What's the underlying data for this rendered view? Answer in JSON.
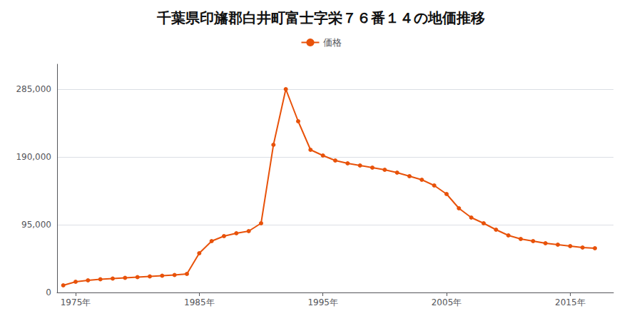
{
  "chart_data": {
    "type": "line",
    "title": "千葉県印旛郡白井町富士字栄７６番１４の地価推移",
    "x": [
      1974,
      1975,
      1976,
      1977,
      1978,
      1979,
      1980,
      1981,
      1982,
      1983,
      1984,
      1985,
      1986,
      1987,
      1988,
      1989,
      1990,
      1991,
      1992,
      1993,
      1994,
      1995,
      1996,
      1997,
      1998,
      1999,
      2000,
      2001,
      2002,
      2003,
      2004,
      2005,
      2006,
      2007,
      2008,
      2009,
      2010,
      2011,
      2012,
      2013,
      2014,
      2015,
      2016,
      2017
    ],
    "series": [
      {
        "name": "価格",
        "color": "#e8520a",
        "marker": "circle",
        "values": [
          10000,
          15000,
          17000,
          18500,
          19500,
          20500,
          21500,
          22500,
          23500,
          24500,
          26000,
          55000,
          72000,
          79000,
          83000,
          86000,
          97000,
          207000,
          285000,
          240000,
          200000,
          192000,
          185000,
          181000,
          178000,
          175000,
          172000,
          168000,
          163000,
          158000,
          150000,
          138000,
          118000,
          105000,
          97000,
          88000,
          80000,
          75000,
          72000,
          69000,
          67000,
          65000,
          63000,
          62000
        ]
      }
    ],
    "xlim": [
      1973.5,
      2018.5
    ],
    "xticks": [
      {
        "value": 1975,
        "label": "1975年"
      },
      {
        "value": 1985,
        "label": "1985年"
      },
      {
        "value": 1995,
        "label": "1995年"
      },
      {
        "value": 2005,
        "label": "2005年"
      },
      {
        "value": 2015,
        "label": "2015年"
      }
    ],
    "ylim": [
      0,
      320000
    ],
    "yticks": [
      0,
      {
        "value": 95000,
        "label": "95,000"
      },
      {
        "value": 190000,
        "label": "190,000"
      },
      {
        "value": 285000,
        "label": "285,000"
      }
    ],
    "grid": true,
    "legend": "top"
  }
}
